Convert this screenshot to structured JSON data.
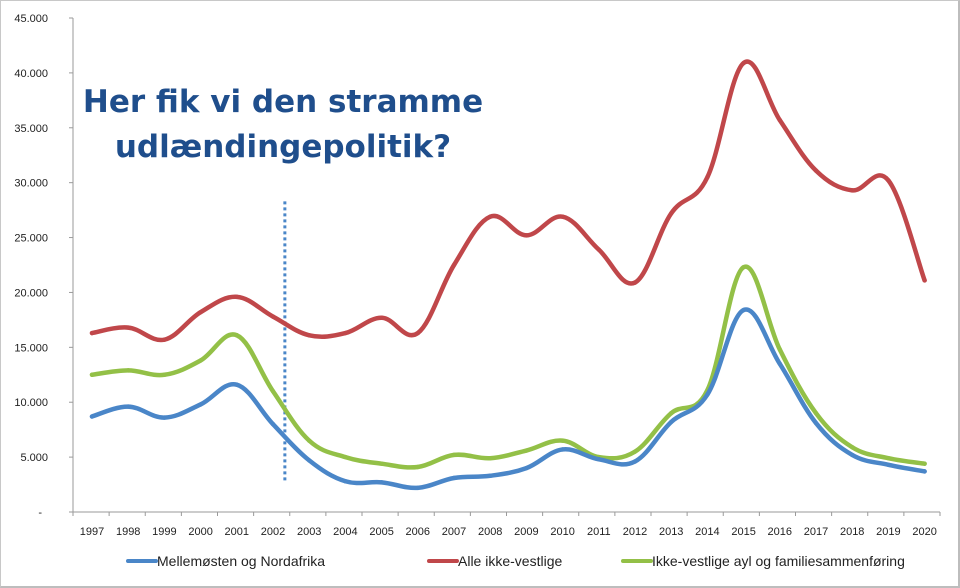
{
  "chart_data": {
    "type": "line",
    "title": "",
    "xlabel": "",
    "ylabel": "",
    "x": [
      1997,
      1998,
      1999,
      2000,
      2001,
      2002,
      2003,
      2004,
      2005,
      2006,
      2007,
      2008,
      2009,
      2010,
      2011,
      2012,
      2013,
      2014,
      2015,
      2016,
      2017,
      2018,
      2019,
      2020
    ],
    "x_tick_labels": [
      "1997",
      "1998",
      "1999",
      "2000",
      "2001",
      "2002",
      "2003",
      "2004",
      "2005",
      "2006",
      "2007",
      "2008",
      "2009",
      "2010",
      "2011",
      "2012",
      "2013",
      "2014",
      "2015",
      "2016",
      "2017",
      "2018",
      "2019",
      "2020"
    ],
    "ylim": [
      0,
      45000
    ],
    "y_ticks": [
      0,
      5000,
      10000,
      15000,
      20000,
      25000,
      30000,
      35000,
      40000,
      45000
    ],
    "y_tick_labels": [
      "-",
      "5.000",
      "10.000",
      "15.000",
      "20.000",
      "25.000",
      "30.000",
      "35.000",
      "40.000",
      "45.000"
    ],
    "grid": false,
    "legend_position": "bottom",
    "series": [
      {
        "name": "Mellemøsten og Nordafrika",
        "color": "#4a86c8",
        "values": [
          8700,
          9600,
          8600,
          9800,
          11600,
          8000,
          4700,
          2800,
          2700,
          2200,
          3100,
          3300,
          4000,
          5700,
          4800,
          4600,
          8200,
          10700,
          18400,
          13500,
          8100,
          5200,
          4300,
          3700
        ]
      },
      {
        "name": "Alle ikke-vestlige",
        "color": "#c0474a",
        "values": [
          16300,
          16800,
          15700,
          18200,
          19600,
          17800,
          16100,
          16300,
          17700,
          16300,
          22500,
          26900,
          25200,
          26900,
          23900,
          20900,
          27200,
          30500,
          40900,
          35700,
          31100,
          29300,
          30200,
          21100
        ]
      },
      {
        "name": "Ikke-vestlige ayl og familiesammenføring",
        "color": "#93c047",
        "values": [
          12500,
          12900,
          12500,
          13800,
          16100,
          11000,
          6500,
          5000,
          4400,
          4100,
          5200,
          4900,
          5600,
          6500,
          5000,
          5500,
          9000,
          11100,
          22300,
          14800,
          9000,
          5900,
          4900,
          4400
        ]
      }
    ],
    "annotation": {
      "lines": [
        "Her fik vi den stramme",
        "udlændingepolitik?"
      ],
      "color": "#1f4e8c"
    },
    "marker_line": {
      "x_value": 2002.3,
      "y_range": [
        2700,
        28300
      ],
      "style": "dotted",
      "color": "#4a86c8"
    }
  }
}
